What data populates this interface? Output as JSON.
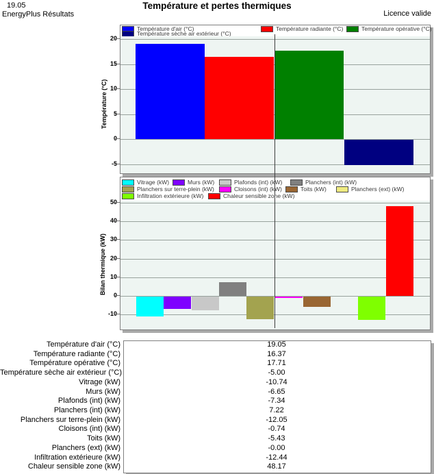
{
  "header": {
    "value": "19.05",
    "app_name": "EnergyPlus Résultats",
    "title": "Température et pertes thermiques",
    "licence": "Licence valide"
  },
  "colors": {
    "plot_background": "#eef5f2",
    "gridline": "#98a29d",
    "frame": "#808080",
    "shadow": "#a9a9a9",
    "cursor_line": "#3c3c3c"
  },
  "temperature_chart": {
    "ylabel": "Température (°C)",
    "yticks": [
      20,
      15,
      10,
      5,
      0,
      -5
    ],
    "series": [
      {
        "name": "Température d'air (°C)",
        "color": "#0000ff",
        "value": 19.05
      },
      {
        "name": "Température radiante (°C)",
        "color": "#ff0000",
        "value": 16.37
      },
      {
        "name": "Température opérative (°C)",
        "color": "#008000",
        "value": 17.71
      },
      {
        "name": "Température sèche air extérieur (°C)",
        "color": "#000080",
        "value": -5.0
      }
    ]
  },
  "balance_chart": {
    "ylabel": "Bilan thermique (kW)",
    "yticks": [
      50,
      40,
      30,
      20,
      10,
      0,
      -10
    ],
    "series": [
      {
        "name": "Vitrage (kW)",
        "color": "#00ffff",
        "value": -10.74
      },
      {
        "name": "Murs (kW)",
        "color": "#7f00ff",
        "value": -6.65
      },
      {
        "name": "Plafonds (int) (kW)",
        "color": "#c8c8c8",
        "value": -7.34
      },
      {
        "name": "Planchers (int) (kW)",
        "color": "#808080",
        "value": 7.22
      },
      {
        "name": "Planchers sur terre-plein (kW)",
        "color": "#a3a34f",
        "value": -12.05
      },
      {
        "name": "Cloisons (int) (kW)",
        "color": "#ff00ff",
        "value": -0.74
      },
      {
        "name": "Toits (kW)",
        "color": "#996633",
        "value": -5.43
      },
      {
        "name": "Planchers (ext) (kW)",
        "color": "#eeea80",
        "value": -0.0
      },
      {
        "name": "Infiltration extérieure (kW)",
        "color": "#7fff00",
        "value": -12.44
      },
      {
        "name": "Chaleur sensible zone (kW)",
        "color": "#ff0000",
        "value": 48.17
      }
    ]
  },
  "table": {
    "rows": [
      {
        "label": "Température d'air (°C)",
        "value": "19.05"
      },
      {
        "label": "Température radiante (°C)",
        "value": "16.37"
      },
      {
        "label": "Température opérative (°C)",
        "value": "17.71"
      },
      {
        "label": "Température sèche air extérieur (°C)",
        "value": "-5.00"
      },
      {
        "label": "Vitrage (kW)",
        "value": "-10.74"
      },
      {
        "label": "Murs (kW)",
        "value": "-6.65"
      },
      {
        "label": "Plafonds (int) (kW)",
        "value": "-7.34"
      },
      {
        "label": "Planchers (int) (kW)",
        "value": "7.22"
      },
      {
        "label": "Planchers sur terre-plein (kW)",
        "value": "-12.05"
      },
      {
        "label": "Cloisons (int) (kW)",
        "value": "-0.74"
      },
      {
        "label": "Toits (kW)",
        "value": "-5.43"
      },
      {
        "label": "Planchers (ext) (kW)",
        "value": "-0.00"
      },
      {
        "label": "Infiltration extérieure (kW)",
        "value": "-12.44"
      },
      {
        "label": "Chaleur sensible zone (kW)",
        "value": "48.17"
      }
    ]
  },
  "chart_data": [
    {
      "type": "bar",
      "title": "",
      "ylabel": "Température (°C)",
      "categories": [
        "Température d'air (°C)",
        "Température radiante (°C)",
        "Température opérative (°C)",
        "Température sèche air extérieur (°C)"
      ],
      "values": [
        19.05,
        16.37,
        17.71,
        -5.0
      ],
      "ylim": [
        -6.5,
        20.5
      ],
      "grid": true,
      "legend_position": "top"
    },
    {
      "type": "bar",
      "title": "",
      "ylabel": "Bilan thermique (kW)",
      "categories": [
        "Vitrage (kW)",
        "Murs (kW)",
        "Plafonds (int) (kW)",
        "Planchers (int) (kW)",
        "Planchers sur terre-plein (kW)",
        "Cloisons (int) (kW)",
        "Toits (kW)",
        "Planchers (ext) (kW)",
        "Infiltration extérieure (kW)",
        "Chaleur sensible zone (kW)"
      ],
      "values": [
        -10.74,
        -6.65,
        -7.34,
        7.22,
        -12.05,
        -0.74,
        -5.43,
        -0.0,
        -12.44,
        48.17
      ],
      "ylim": [
        -18,
        51
      ],
      "grid": true,
      "legend_position": "top"
    }
  ]
}
